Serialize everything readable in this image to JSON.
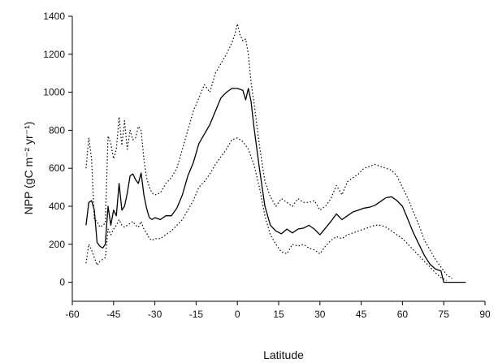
{
  "chart_data": {
    "type": "line",
    "title": "",
    "xlabel": "Latitude",
    "ylabel": "NPP (gC m⁻² yr⁻¹)",
    "xlim": [
      -60,
      90
    ],
    "ylim": [
      -100,
      1400
    ],
    "xticks": [
      -60,
      -45,
      -30,
      -15,
      0,
      15,
      30,
      45,
      60,
      75,
      90
    ],
    "xtick_labels": [
      "-60",
      "-45",
      "-30",
      "-15",
      "0",
      "15",
      "30",
      "45",
      "60",
      "75",
      "90"
    ],
    "yticks": [
      0,
      200,
      400,
      600,
      800,
      1000,
      1200,
      1400
    ],
    "ytick_labels": [
      "0",
      "200",
      "400",
      "600",
      "800",
      "1000",
      "1200",
      "1400"
    ],
    "grid": false,
    "legend": "none",
    "series": [
      {
        "style": "solid",
        "color": "#000000",
        "x": [
          -55,
          -54,
          -53,
          -52,
          -51,
          -50,
          -49,
          -48,
          -47,
          -46,
          -45,
          -44,
          -43,
          -42,
          -41,
          -40,
          -39,
          -38,
          -37,
          -36,
          -35,
          -34,
          -33,
          -32,
          -31,
          -30,
          -28,
          -26,
          -24,
          -22,
          -20,
          -18,
          -16,
          -14,
          -12,
          -10,
          -8,
          -6,
          -4,
          -2,
          0,
          2,
          3,
          4,
          5,
          6,
          8,
          10,
          12,
          14,
          16,
          18,
          20,
          22,
          24,
          26,
          28,
          30,
          32,
          34,
          36,
          38,
          40,
          42,
          44,
          46,
          48,
          50,
          52,
          54,
          56,
          58,
          60,
          62,
          64,
          66,
          68,
          70,
          72,
          74,
          75,
          76,
          78,
          80,
          82,
          83
        ],
        "y": [
          300,
          420,
          430,
          380,
          210,
          190,
          180,
          200,
          400,
          300,
          380,
          350,
          520,
          380,
          400,
          470,
          560,
          570,
          540,
          520,
          575,
          460,
          390,
          340,
          330,
          340,
          330,
          350,
          350,
          390,
          460,
          560,
          630,
          730,
          780,
          830,
          900,
          970,
          1000,
          1020,
          1020,
          1010,
          960,
          1020,
          950,
          820,
          600,
          400,
          300,
          270,
          255,
          280,
          260,
          280,
          285,
          300,
          280,
          250,
          285,
          320,
          360,
          330,
          350,
          370,
          380,
          390,
          395,
          405,
          425,
          445,
          450,
          430,
          400,
          330,
          260,
          200,
          140,
          95,
          70,
          60,
          0,
          0,
          0,
          0,
          0,
          0
        ]
      },
      {
        "style": "dotted",
        "color": "#000000",
        "x": [
          -55,
          -54,
          -53,
          -52,
          -51,
          -50,
          -49,
          -48,
          -47,
          -46,
          -45,
          -44,
          -43,
          -42,
          -41,
          -40,
          -39,
          -38,
          -37,
          -36,
          -35,
          -34,
          -33,
          -32,
          -31,
          -30,
          -28,
          -26,
          -24,
          -22,
          -20,
          -18,
          -16,
          -14,
          -12,
          -10,
          -8,
          -6,
          -4,
          -2,
          -1,
          0,
          1,
          2,
          3,
          4,
          5,
          6,
          8,
          10,
          12,
          14,
          16,
          18,
          20,
          22,
          24,
          26,
          28,
          30,
          32,
          34,
          36,
          38,
          40,
          42,
          44,
          46,
          48,
          50,
          52,
          54,
          56,
          58,
          60,
          62,
          64,
          66,
          68,
          70,
          72,
          74,
          76,
          78
        ],
        "y": [
          600,
          760,
          650,
          330,
          320,
          290,
          300,
          310,
          770,
          730,
          650,
          700,
          870,
          720,
          850,
          700,
          800,
          750,
          760,
          820,
          800,
          650,
          550,
          500,
          470,
          460,
          470,
          520,
          550,
          600,
          700,
          800,
          900,
          970,
          1040,
          1000,
          1100,
          1150,
          1200,
          1260,
          1300,
          1360,
          1300,
          1270,
          1280,
          1200,
          1050,
          950,
          720,
          530,
          450,
          400,
          440,
          420,
          400,
          440,
          420,
          420,
          430,
          380,
          400,
          440,
          510,
          460,
          530,
          550,
          570,
          600,
          610,
          620,
          610,
          600,
          590,
          560,
          500,
          440,
          370,
          300,
          220,
          170,
          120,
          80,
          40,
          20
        ]
      },
      {
        "style": "dotted",
        "color": "#000000",
        "x": [
          -55,
          -54,
          -53,
          -52,
          -51,
          -50,
          -49,
          -48,
          -47,
          -46,
          -45,
          -44,
          -43,
          -42,
          -41,
          -40,
          -39,
          -38,
          -37,
          -36,
          -35,
          -34,
          -33,
          -32,
          -31,
          -30,
          -28,
          -26,
          -24,
          -22,
          -20,
          -18,
          -16,
          -14,
          -12,
          -10,
          -8,
          -6,
          -4,
          -2,
          0,
          2,
          4,
          6,
          8,
          10,
          12,
          14,
          16,
          18,
          20,
          22,
          24,
          26,
          28,
          30,
          32,
          34,
          36,
          38,
          40,
          42,
          44,
          46,
          48,
          50,
          52,
          54,
          56,
          58,
          60,
          62,
          64,
          66,
          68,
          70,
          72,
          74,
          76
        ],
        "y": [
          100,
          200,
          170,
          130,
          90,
          110,
          120,
          130,
          280,
          250,
          280,
          300,
          330,
          300,
          290,
          300,
          310,
          320,
          300,
          290,
          320,
          280,
          260,
          230,
          220,
          230,
          230,
          250,
          270,
          300,
          330,
          380,
          430,
          500,
          530,
          570,
          620,
          660,
          700,
          750,
          760,
          740,
          700,
          620,
          500,
          350,
          250,
          200,
          160,
          150,
          200,
          190,
          200,
          180,
          170,
          150,
          190,
          220,
          240,
          230,
          250,
          260,
          270,
          280,
          290,
          300,
          300,
          290,
          270,
          250,
          230,
          200,
          170,
          140,
          110,
          80,
          50,
          25,
          10
        ]
      }
    ]
  }
}
